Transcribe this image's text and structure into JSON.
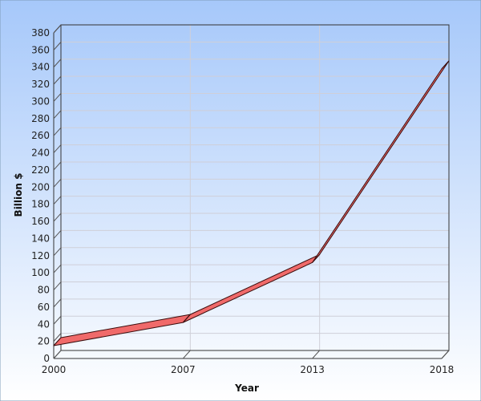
{
  "chart_data": {
    "type": "line",
    "title": "",
    "xlabel": "Year",
    "ylabel": "Billion $",
    "x": [
      "2000",
      "2007",
      "2013",
      "2018"
    ],
    "series": [
      {
        "values": [
          15,
          42,
          112,
          338
        ],
        "color": "#f06a6a"
      }
    ],
    "ylim": [
      0,
      380
    ],
    "ytick_step": 20,
    "grid": true,
    "legend": "none",
    "view": "3d",
    "background_top": "#a6c8fa",
    "background_bottom": "#ffffff",
    "gridline_color": "#cfcfd8"
  }
}
